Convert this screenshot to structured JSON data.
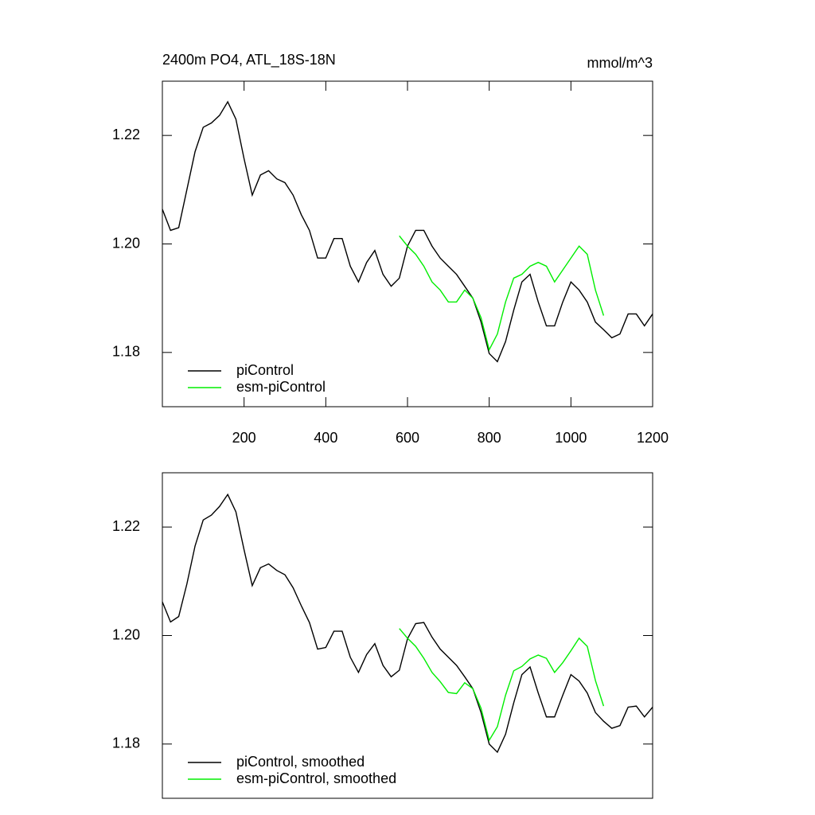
{
  "chart_data": [
    {
      "type": "line",
      "title": "2400m PO4, ATL_18S-18N",
      "units_label": "mmol/m^3",
      "xlim": [
        0,
        1200
      ],
      "xticks": [
        200,
        400,
        600,
        800,
        1000,
        1200
      ],
      "ylim": [
        1.17,
        1.23
      ],
      "yticks": [
        1.18,
        {
          "value": 1.2,
          "label": "1.20"
        },
        1.22
      ],
      "legend": "lower left",
      "series": [
        {
          "name": "piControl",
          "color": "#000000",
          "x": [
            0,
            20,
            40,
            60,
            80,
            100,
            120,
            140,
            160,
            180,
            200,
            220,
            240,
            260,
            280,
            300,
            320,
            340,
            360,
            380,
            400,
            420,
            440,
            460,
            480,
            500,
            520,
            540,
            560,
            580,
            600,
            620,
            640,
            660,
            680,
            700,
            720,
            740,
            760,
            780,
            800,
            820,
            840,
            860,
            880,
            900,
            920,
            940,
            960,
            980,
            1000,
            1020,
            1040,
            1060,
            1080,
            1100,
            1120,
            1140,
            1160,
            1180,
            1200
          ],
          "values": [
            1.2064,
            1.2025,
            1.203,
            1.21,
            1.217,
            1.2215,
            1.2223,
            1.2237,
            1.2262,
            1.223,
            1.2157,
            1.209,
            1.2127,
            1.2135,
            1.212,
            1.2113,
            1.209,
            1.2054,
            1.2025,
            1.1974,
            1.1974,
            1.201,
            1.201,
            1.1959,
            1.193,
            1.1966,
            1.1988,
            1.1944,
            1.1922,
            1.1937,
            1.1996,
            1.2025,
            1.2025,
            1.1996,
            1.1974,
            1.1959,
            1.1944,
            1.1922,
            1.19,
            1.1856,
            1.1798,
            1.1783,
            1.182,
            1.1878,
            1.193,
            1.1944,
            1.1893,
            1.1849,
            1.1849,
            1.1893,
            1.193,
            1.1915,
            1.1893,
            1.1856,
            1.1842,
            1.1827,
            1.1834,
            1.1871,
            1.1871,
            1.1849,
            1.1871
          ]
        },
        {
          "name": "esm-piControl",
          "color": "#00ee00",
          "x": [
            580,
            600,
            620,
            640,
            660,
            680,
            700,
            720,
            740,
            760,
            780,
            800,
            820,
            840,
            860,
            880,
            900,
            920,
            940,
            960,
            980,
            1000,
            1020,
            1040,
            1060,
            1080
          ],
          "values": [
            1.2015,
            1.1996,
            1.1981,
            1.1959,
            1.193,
            1.1915,
            1.1893,
            1.1893,
            1.1915,
            1.19,
            1.1864,
            1.1805,
            1.1834,
            1.1893,
            1.1937,
            1.1944,
            1.1959,
            1.1966,
            1.1959,
            1.193,
            1.1952,
            1.1974,
            1.1996,
            1.1981,
            1.1915,
            1.1868
          ]
        }
      ]
    },
    {
      "type": "line",
      "xlim": [
        0,
        1200
      ],
      "ylim": [
        1.17,
        1.23
      ],
      "yticks": [
        1.18,
        {
          "value": 1.2,
          "label": "1.20"
        },
        1.22
      ],
      "legend": "lower left",
      "series": [
        {
          "name": "piControl, smoothed",
          "color": "#000000",
          "x": [
            0,
            20,
            40,
            60,
            80,
            100,
            120,
            140,
            160,
            180,
            200,
            220,
            240,
            260,
            280,
            300,
            320,
            340,
            360,
            380,
            400,
            420,
            440,
            460,
            480,
            500,
            520,
            540,
            560,
            580,
            600,
            620,
            640,
            660,
            680,
            700,
            720,
            740,
            760,
            780,
            800,
            820,
            840,
            860,
            880,
            900,
            920,
            940,
            960,
            980,
            1000,
            1020,
            1040,
            1060,
            1080,
            1100,
            1120,
            1140,
            1160,
            1180,
            1200
          ],
          "values": [
            1.2062,
            1.2025,
            1.2035,
            1.2095,
            1.2165,
            1.2213,
            1.2222,
            1.2238,
            1.226,
            1.2228,
            1.2158,
            1.2092,
            1.2125,
            1.2132,
            1.212,
            1.2112,
            1.2088,
            1.2055,
            1.2024,
            1.1975,
            1.1978,
            1.2008,
            1.2008,
            1.196,
            1.1932,
            1.1965,
            1.1985,
            1.1945,
            1.1924,
            1.1936,
            1.1994,
            1.2022,
            1.2024,
            1.1997,
            1.1975,
            1.196,
            1.1945,
            1.1924,
            1.1902,
            1.1858,
            1.18,
            1.1785,
            1.1818,
            1.1876,
            1.1928,
            1.1942,
            1.1894,
            1.185,
            1.185,
            1.189,
            1.1928,
            1.1916,
            1.1894,
            1.1858,
            1.1842,
            1.1829,
            1.1834,
            1.1868,
            1.187,
            1.185,
            1.1868
          ]
        },
        {
          "name": "esm-piControl, smoothed",
          "color": "#00ee00",
          "x": [
            580,
            600,
            620,
            640,
            660,
            680,
            700,
            720,
            740,
            760,
            780,
            800,
            820,
            840,
            860,
            880,
            900,
            920,
            940,
            960,
            980,
            1000,
            1020,
            1040,
            1060,
            1080
          ],
          "values": [
            1.2013,
            1.1995,
            1.198,
            1.1958,
            1.1932,
            1.1915,
            1.1895,
            1.1893,
            1.1913,
            1.1902,
            1.1866,
            1.1807,
            1.1832,
            1.189,
            1.1935,
            1.1943,
            1.1957,
            1.1964,
            1.1958,
            1.1932,
            1.195,
            1.1972,
            1.1995,
            1.198,
            1.1917,
            1.187
          ]
        }
      ]
    }
  ]
}
